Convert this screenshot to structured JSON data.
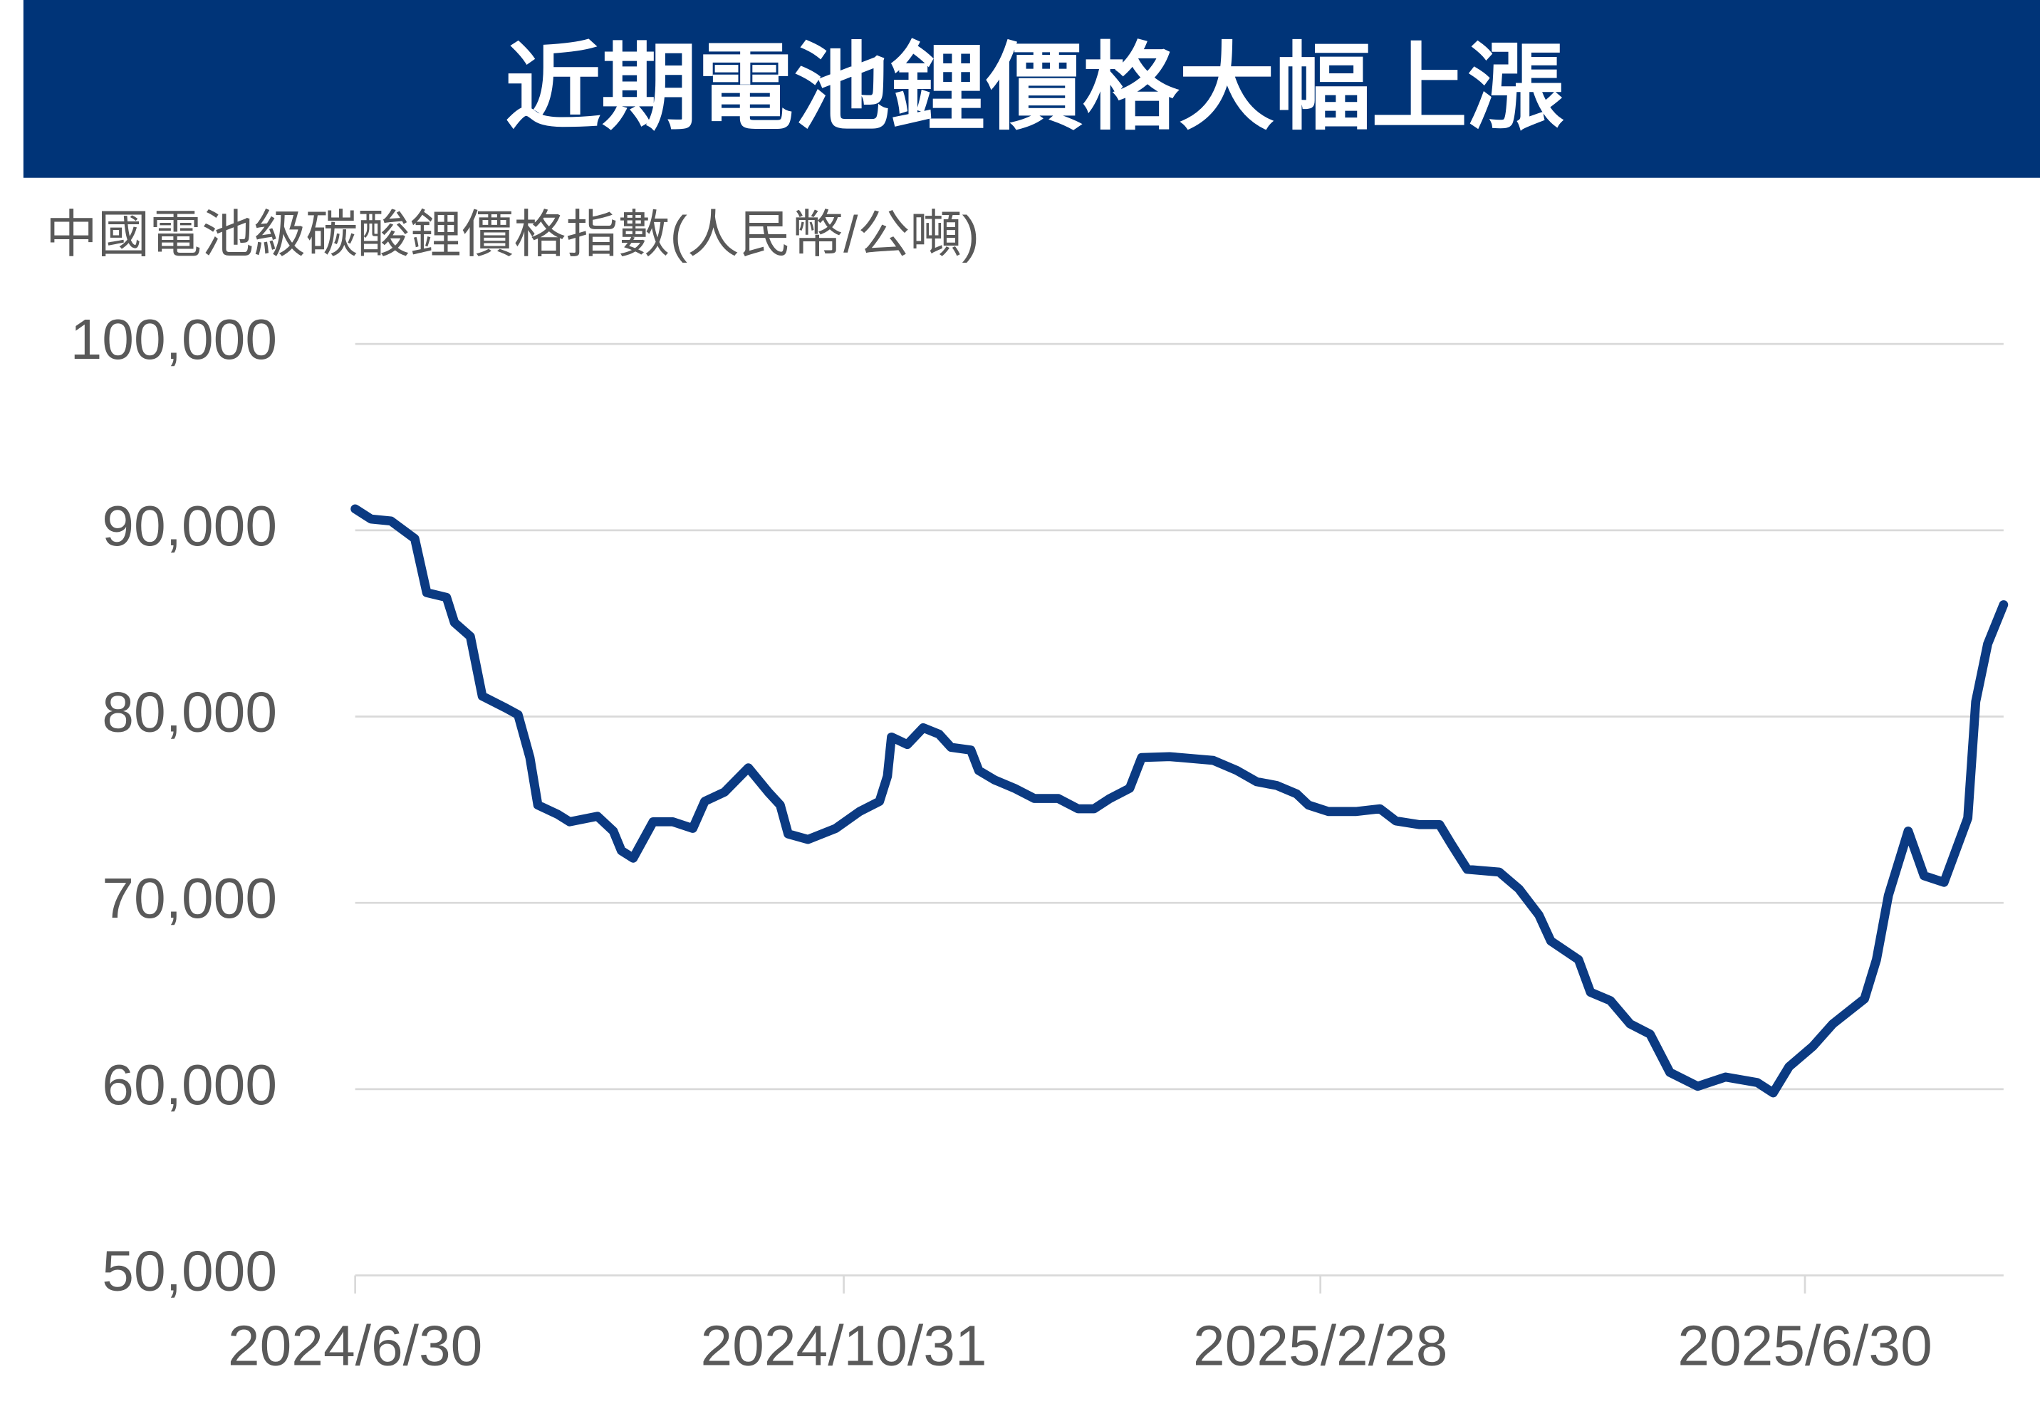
{
  "chart_data": {
    "type": "line",
    "title": "近期電池鋰價格大幅上漲",
    "y_axis_label": "中國電池級碳酸鋰價格指數(人民幣/公噸)",
    "color": "#0b3a82",
    "grid": true,
    "x": [
      "2024/6/30",
      "2024/7/4",
      "2024/7/9",
      "2024/7/15",
      "2024/7/18",
      "2024/7/23",
      "2024/7/25",
      "2024/7/29",
      "2024/8/1",
      "2024/8/7",
      "2024/8/10",
      "2024/8/13",
      "2024/8/15",
      "2024/8/20",
      "2024/8/23",
      "2024/8/30",
      "2024/9/3",
      "2024/9/5",
      "2024/9/8",
      "2024/9/13",
      "2024/9/18",
      "2024/9/23",
      "2024/9/26",
      "2024/10/1",
      "2024/10/7",
      "2024/10/12",
      "2024/10/15",
      "2024/10/17",
      "2024/10/22",
      "2024/10/29",
      "2024/11/4",
      "2024/11/9",
      "2024/11/11",
      "2024/11/12",
      "2024/11/16",
      "2024/11/20",
      "2024/11/24",
      "2024/11/27",
      "2024/12/2",
      "2024/12/4",
      "2024/12/8",
      "2024/12/13",
      "2024/12/18",
      "2024/12/24",
      "2024/12/29",
      "2025/1/2",
      "2025/1/6",
      "2025/1/11",
      "2025/1/14",
      "2025/1/21",
      "2025/2/1",
      "2025/2/7",
      "2025/2/12",
      "2025/2/17",
      "2025/2/22",
      "2025/2/25",
      "2025/3/2",
      "2025/3/9",
      "2025/3/15",
      "2025/3/19",
      "2025/3/25",
      "2025/3/30",
      "2025/4/2",
      "2025/4/6",
      "2025/4/14",
      "2025/4/19",
      "2025/4/24",
      "2025/4/27",
      "2025/5/4",
      "2025/5/7",
      "2025/5/12",
      "2025/5/17",
      "2025/5/22",
      "2025/5/27",
      "2025/6/3",
      "2025/6/10",
      "2025/6/18",
      "2025/6/22",
      "2025/6/26",
      "2025/7/2",
      "2025/7/7",
      "2025/7/15",
      "2025/7/18",
      "2025/7/21",
      "2025/7/26",
      "2025/7/30",
      "2025/8/4",
      "2025/8/10",
      "2025/8/12",
      "2025/8/15",
      "2025/8/19"
    ],
    "values": [
      91150,
      90600,
      90500,
      89550,
      86650,
      86400,
      85050,
      84300,
      81100,
      80450,
      80100,
      77800,
      75250,
      74750,
      74350,
      74650,
      73850,
      72800,
      72400,
      74350,
      74350,
      74000,
      75450,
      75950,
      77250,
      75950,
      75250,
      73700,
      73400,
      74000,
      74900,
      75450,
      76800,
      78900,
      78500,
      79400,
      79050,
      78350,
      78200,
      77100,
      76600,
      76150,
      75600,
      75600,
      75050,
      75050,
      75600,
      76150,
      77800,
      77850,
      77650,
      77100,
      76500,
      76300,
      75850,
      75250,
      74900,
      74900,
      75050,
      74400,
      74200,
      74200,
      73150,
      71800,
      71650,
      70750,
      69350,
      67950,
      66950,
      65200,
      64750,
      63500,
      62950,
      60900,
      60150,
      60650,
      60350,
      59800,
      61200,
      62300,
      63500,
      64850,
      66950,
      70400,
      73850,
      71450,
      71100,
      74550,
      80800,
      83900,
      86000
    ],
    "xlim": [
      "2024/6/30",
      "2025/8/19"
    ],
    "xticks": [
      "2024/6/30",
      "2024/10/31",
      "2025/2/28",
      "2025/6/30"
    ],
    "ylim": [
      50000,
      100000
    ],
    "yticks": [
      {
        "value": 50000,
        "label": "50,000"
      },
      {
        "value": 60000,
        "label": "60,000"
      },
      {
        "value": 70000,
        "label": "70,000"
      },
      {
        "value": 80000,
        "label": "80,000"
      },
      {
        "value": 90000,
        "label": "90,000"
      },
      {
        "value": 100000,
        "label": "100,000"
      }
    ]
  }
}
